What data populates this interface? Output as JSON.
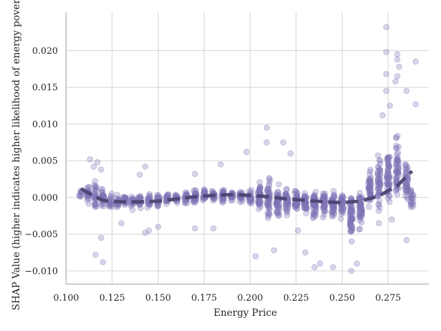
{
  "chart_data": {
    "type": "scatter",
    "title": "",
    "xlabel": "Energy Price",
    "ylabel": "SHAP Value (higher indicates higher likelihood of energy poverty)",
    "xlim": [
      0.1,
      0.297
    ],
    "ylim": [
      -0.0118,
      0.0252
    ],
    "grid": true,
    "legend": "none",
    "x_ticks": [
      {
        "value": 0.1,
        "label": "0.100"
      },
      {
        "value": 0.125,
        "label": "0.125"
      },
      {
        "value": 0.15,
        "label": "0.150"
      },
      {
        "value": 0.175,
        "label": "0.175"
      },
      {
        "value": 0.2,
        "label": "0.200"
      },
      {
        "value": 0.225,
        "label": "0.225"
      },
      {
        "value": 0.25,
        "label": "0.250"
      },
      {
        "value": 0.275,
        "label": "0.275"
      }
    ],
    "y_ticks": [
      {
        "value": -0.01,
        "label": "−0.010"
      },
      {
        "value": -0.005,
        "label": "−0.005"
      },
      {
        "value": 0.0,
        "label": "0.000"
      },
      {
        "value": 0.005,
        "label": "0.005"
      },
      {
        "value": 0.01,
        "label": "0.010"
      },
      {
        "value": 0.015,
        "label": "0.015"
      },
      {
        "value": 0.02,
        "label": "0.020"
      }
    ],
    "colors": {
      "points": "#8073b6",
      "trend": "#4b4270",
      "grid": "#d3d3d3",
      "axis": "#cccccc"
    },
    "clusters": [
      {
        "x": 0.108,
        "mean": 0.0005,
        "spread": 0.001,
        "count": 10
      },
      {
        "x": 0.112,
        "mean": 0.0003,
        "spread": 0.0018,
        "count": 25
      },
      {
        "x": 0.116,
        "mean": 0.0002,
        "spread": 0.0022,
        "count": 30
      },
      {
        "x": 0.12,
        "mean": -0.0003,
        "spread": 0.0018,
        "count": 25
      },
      {
        "x": 0.124,
        "mean": -0.0005,
        "spread": 0.0012,
        "count": 20
      },
      {
        "x": 0.128,
        "mean": -0.0005,
        "spread": 0.001,
        "count": 20
      },
      {
        "x": 0.132,
        "mean": -0.0004,
        "spread": 0.0011,
        "count": 20
      },
      {
        "x": 0.136,
        "mean": -0.0005,
        "spread": 0.001,
        "count": 20
      },
      {
        "x": 0.14,
        "mean": -0.0004,
        "spread": 0.0011,
        "count": 20
      },
      {
        "x": 0.145,
        "mean": -0.0005,
        "spread": 0.0013,
        "count": 25
      },
      {
        "x": 0.15,
        "mean": -0.0003,
        "spread": 0.0012,
        "count": 25
      },
      {
        "x": 0.155,
        "mean": -0.0002,
        "spread": 0.001,
        "count": 20
      },
      {
        "x": 0.16,
        "mean": -0.0001,
        "spread": 0.001,
        "count": 20
      },
      {
        "x": 0.165,
        "mean": 0.0,
        "spread": 0.0011,
        "count": 25
      },
      {
        "x": 0.17,
        "mean": 0.0001,
        "spread": 0.0014,
        "count": 30
      },
      {
        "x": 0.175,
        "mean": 0.0002,
        "spread": 0.001,
        "count": 25
      },
      {
        "x": 0.18,
        "mean": 0.0002,
        "spread": 0.001,
        "count": 25
      },
      {
        "x": 0.185,
        "mean": 0.0002,
        "spread": 0.0011,
        "count": 25
      },
      {
        "x": 0.19,
        "mean": 0.0002,
        "spread": 0.0008,
        "count": 20
      },
      {
        "x": 0.195,
        "mean": 0.0002,
        "spread": 0.0009,
        "count": 25
      },
      {
        "x": 0.2,
        "mean": 0.0,
        "spread": 0.0012,
        "count": 30
      },
      {
        "x": 0.205,
        "mean": 0.0001,
        "spread": 0.0022,
        "count": 45
      },
      {
        "x": 0.21,
        "mean": 0.0,
        "spread": 0.0028,
        "count": 50
      },
      {
        "x": 0.215,
        "mean": -0.0005,
        "spread": 0.0022,
        "count": 45
      },
      {
        "x": 0.22,
        "mean": -0.0005,
        "spread": 0.0021,
        "count": 45
      },
      {
        "x": 0.225,
        "mean": -0.0005,
        "spread": 0.0019,
        "count": 40
      },
      {
        "x": 0.23,
        "mean": -0.0007,
        "spread": 0.0018,
        "count": 40
      },
      {
        "x": 0.235,
        "mean": -0.0008,
        "spread": 0.0023,
        "count": 50
      },
      {
        "x": 0.24,
        "mean": -0.0008,
        "spread": 0.0019,
        "count": 45
      },
      {
        "x": 0.245,
        "mean": -0.0009,
        "spread": 0.002,
        "count": 45
      },
      {
        "x": 0.25,
        "mean": -0.0009,
        "spread": 0.002,
        "count": 40
      },
      {
        "x": 0.255,
        "mean": -0.002,
        "spread": 0.0032,
        "count": 60
      },
      {
        "x": 0.26,
        "mean": -0.0015,
        "spread": 0.0027,
        "count": 55
      },
      {
        "x": 0.265,
        "mean": 0.001,
        "spread": 0.003,
        "count": 50
      },
      {
        "x": 0.27,
        "mean": 0.002,
        "spread": 0.0038,
        "count": 50
      },
      {
        "x": 0.275,
        "mean": 0.003,
        "spread": 0.005,
        "count": 55
      },
      {
        "x": 0.28,
        "mean": 0.004,
        "spread": 0.0048,
        "count": 55
      },
      {
        "x": 0.285,
        "mean": 0.002,
        "spread": 0.0035,
        "count": 45
      },
      {
        "x": 0.288,
        "mean": 0.0,
        "spread": 0.0015,
        "count": 20
      }
    ],
    "outliers": [
      [
        0.113,
        0.0052
      ],
      [
        0.115,
        0.0042
      ],
      [
        0.117,
        0.0048
      ],
      [
        0.119,
        0.0038
      ],
      [
        0.116,
        -0.0078
      ],
      [
        0.12,
        -0.0088
      ],
      [
        0.119,
        -0.0055
      ],
      [
        0.13,
        -0.0035
      ],
      [
        0.14,
        0.0031
      ],
      [
        0.143,
        0.0042
      ],
      [
        0.145,
        -0.0045
      ],
      [
        0.143,
        -0.0048
      ],
      [
        0.15,
        -0.004
      ],
      [
        0.17,
        0.0032
      ],
      [
        0.17,
        -0.0042
      ],
      [
        0.18,
        -0.0042
      ],
      [
        0.184,
        0.0045
      ],
      [
        0.198,
        0.0062
      ],
      [
        0.203,
        -0.008
      ],
      [
        0.209,
        0.0095
      ],
      [
        0.209,
        0.0075
      ],
      [
        0.213,
        -0.0072
      ],
      [
        0.218,
        0.0075
      ],
      [
        0.222,
        0.006
      ],
      [
        0.226,
        -0.0045
      ],
      [
        0.23,
        -0.0075
      ],
      [
        0.235,
        -0.0095
      ],
      [
        0.238,
        -0.009
      ],
      [
        0.245,
        -0.0095
      ],
      [
        0.255,
        -0.01
      ],
      [
        0.258,
        -0.009
      ],
      [
        0.274,
        0.0232
      ],
      [
        0.274,
        0.0198
      ],
      [
        0.274,
        0.0168
      ],
      [
        0.274,
        0.0145
      ],
      [
        0.28,
        0.0195
      ],
      [
        0.28,
        0.0188
      ],
      [
        0.281,
        0.0178
      ],
      [
        0.28,
        0.0165
      ],
      [
        0.279,
        0.0158
      ],
      [
        0.276,
        0.0125
      ],
      [
        0.272,
        0.0112
      ],
      [
        0.285,
        0.0145
      ],
      [
        0.29,
        0.0185
      ],
      [
        0.29,
        0.0127
      ],
      [
        0.27,
        -0.0035
      ],
      [
        0.277,
        -0.003
      ],
      [
        0.285,
        -0.0058
      ]
    ],
    "trend": {
      "style": "dashed",
      "points": [
        [
          0.108,
          0.0012
        ],
        [
          0.115,
          0.0002
        ],
        [
          0.12,
          -0.0004
        ],
        [
          0.13,
          -0.0006
        ],
        [
          0.14,
          -0.0006
        ],
        [
          0.15,
          -0.0005
        ],
        [
          0.16,
          -0.0002
        ],
        [
          0.17,
          0.0001
        ],
        [
          0.18,
          0.0003
        ],
        [
          0.19,
          0.0004
        ],
        [
          0.2,
          0.0003
        ],
        [
          0.21,
          0.0001
        ],
        [
          0.22,
          -0.0002
        ],
        [
          0.23,
          -0.0004
        ],
        [
          0.24,
          -0.0006
        ],
        [
          0.25,
          -0.0007
        ],
        [
          0.26,
          -0.0005
        ],
        [
          0.27,
          0.0002
        ],
        [
          0.28,
          0.0016
        ],
        [
          0.288,
          0.0036
        ]
      ]
    }
  }
}
